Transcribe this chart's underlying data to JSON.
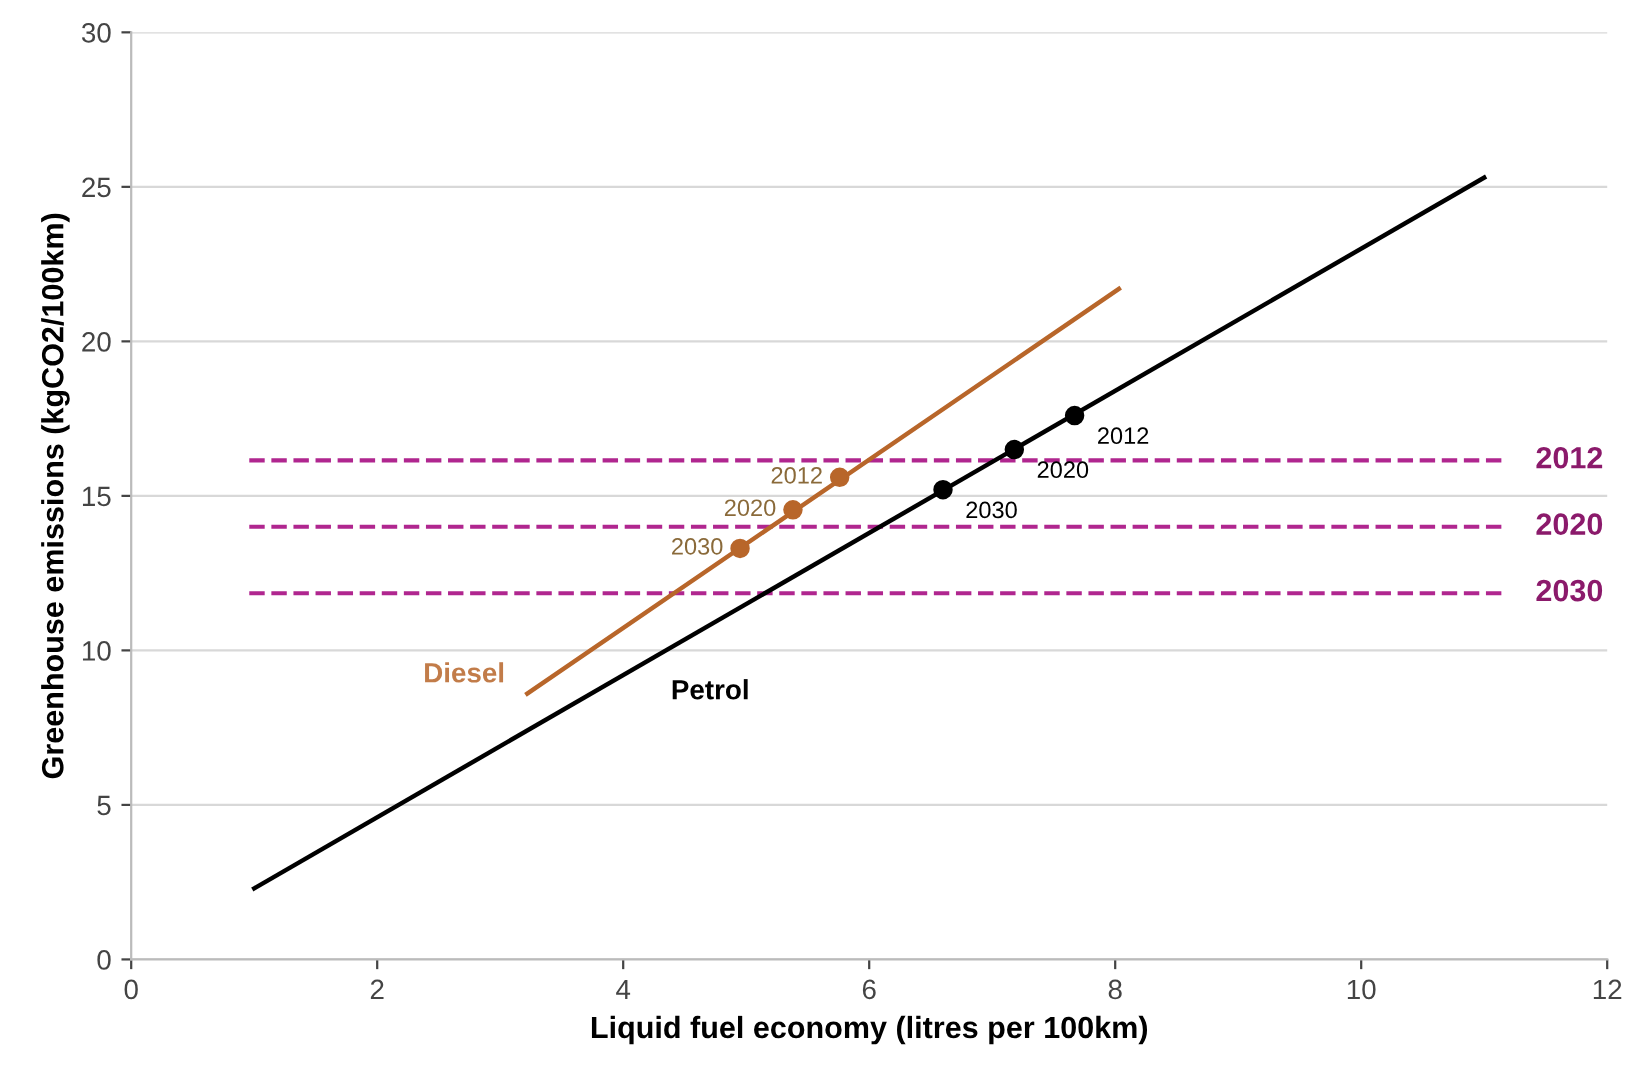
{
  "chart_data": {
    "type": "line",
    "xlabel": "Liquid fuel economy (litres per 100km)",
    "ylabel": "Greenhouse emissions (kgCO2/100km)",
    "xlim": [
      0,
      12
    ],
    "xticks": [
      0,
      2,
      4,
      6,
      8,
      10,
      12
    ],
    "ylim": [
      0,
      30
    ],
    "yticks": [
      0,
      5,
      10,
      15,
      20,
      25,
      30
    ],
    "grid": "y",
    "series": [
      {
        "name": "Petrol",
        "color": "#000000",
        "x": [
          1,
          11
        ],
        "values": [
          2.3,
          25.3
        ],
        "marker": "none"
      },
      {
        "type": "scatter",
        "color": "#000000",
        "x": [
          7.67,
          7.18,
          6.6
        ],
        "values": [
          17.6,
          16.5,
          15.2
        ],
        "marker": "circle"
      },
      {
        "name": "Diesel",
        "color": "#b8662a",
        "x": [
          3.22,
          8.03
        ],
        "values": [
          8.6,
          21.7
        ],
        "marker": "none"
      },
      {
        "type": "scatter",
        "color": "#b8662a",
        "x": [
          5.76,
          5.38,
          4.95
        ],
        "values": [
          15.6,
          14.55,
          13.3
        ],
        "marker": "circle"
      }
    ],
    "ref_lines": [
      {
        "axis": "y",
        "value": 16.15,
        "color": "#b0268f",
        "line_style": "dashed"
      },
      {
        "axis": "y",
        "value": 14.0,
        "color": "#b0268f",
        "line_style": "dashed"
      },
      {
        "axis": "y",
        "value": 11.85,
        "color": "#b0268f",
        "line_style": "dashed"
      }
    ],
    "annotations": [
      {
        "text": "2012",
        "x": 7.67,
        "y": 17.6
      },
      {
        "text": "2020",
        "x": 7.18,
        "y": 16.5
      },
      {
        "text": "2030",
        "x": 6.6,
        "y": 15.2
      },
      {
        "text": "2012",
        "x": 5.76,
        "y": 15.6
      },
      {
        "text": "2020",
        "x": 5.38,
        "y": 14.55
      },
      {
        "text": "2030",
        "x": 4.95,
        "y": 13.3
      },
      {
        "text": "2012",
        "x": 11.1,
        "y": 16.15
      },
      {
        "text": "2020",
        "x": 11.1,
        "y": 14.0
      },
      {
        "text": "2030",
        "x": 11.1,
        "y": 11.85
      }
    ]
  }
}
